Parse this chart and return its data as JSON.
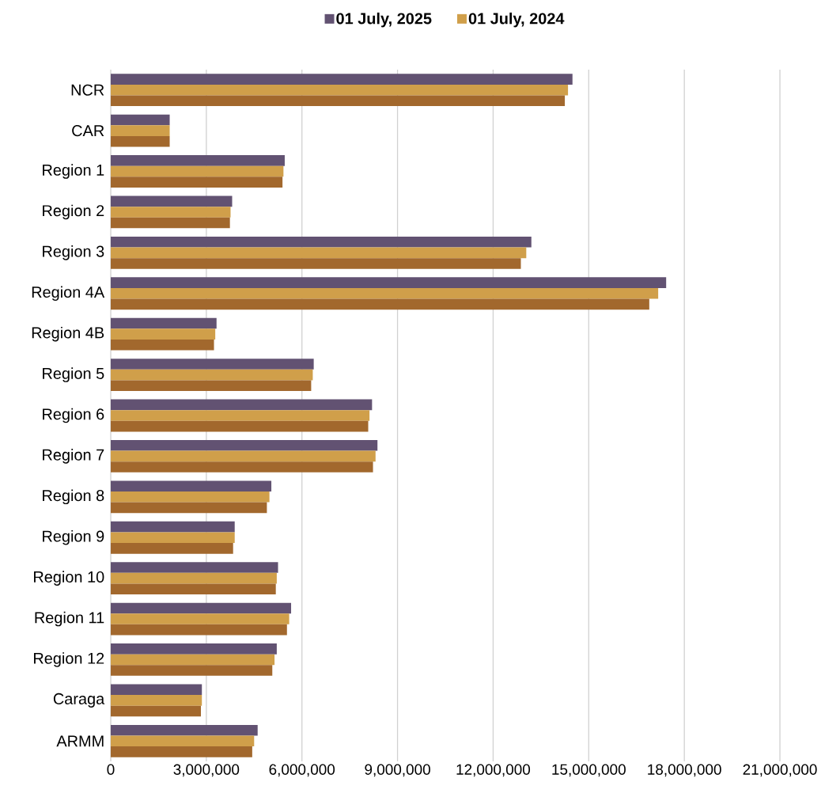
{
  "chart_data": {
    "type": "bar",
    "orientation": "horizontal",
    "categories": [
      "NCR",
      "CAR",
      "Region 1",
      "Region 2",
      "Region 3",
      "Region 4A",
      "Region 4B",
      "Region 5",
      "Region 6",
      "Region 7",
      "Region 8",
      "Region 9",
      "Region 10",
      "Region 11",
      "Region 12",
      "Caraga",
      "ARMM"
    ],
    "series": [
      {
        "name": "01 July, 2025",
        "color": "#625272",
        "values": [
          14490000,
          1850000,
          5460000,
          3810000,
          13200000,
          17430000,
          3320000,
          6370000,
          8200000,
          8370000,
          5040000,
          3890000,
          5250000,
          5660000,
          5210000,
          2860000,
          4610000
        ]
      },
      {
        "name": "01 July, 2024",
        "color": "#d09f4a",
        "values": [
          14350000,
          1850000,
          5420000,
          3760000,
          13040000,
          17180000,
          3280000,
          6340000,
          8120000,
          8310000,
          4980000,
          3890000,
          5210000,
          5600000,
          5140000,
          2860000,
          4500000
        ]
      },
      {
        "color": "#a2682d",
        "values": [
          14250000,
          1850000,
          5390000,
          3740000,
          12870000,
          16900000,
          3240000,
          6290000,
          8080000,
          8230000,
          4900000,
          3840000,
          5180000,
          5530000,
          5070000,
          2830000,
          4440000
        ]
      }
    ],
    "xlim": [
      0,
      21000000
    ],
    "xticks": [
      0,
      {
        "value": 3000000,
        "label": "3,000,000"
      },
      {
        "value": 6000000,
        "label": "6,000,000"
      },
      {
        "value": 9000000,
        "label": "9,000,000"
      },
      {
        "value": 12000000,
        "label": "12,000,000"
      },
      {
        "value": 15000000,
        "label": "15,000,000"
      },
      {
        "value": 18000000,
        "label": "18,000,000"
      },
      {
        "value": 21000000,
        "label": "21,000,000"
      }
    ],
    "grid": "x",
    "legend": "top"
  }
}
